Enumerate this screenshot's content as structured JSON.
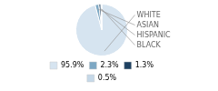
{
  "chart_data": {
    "type": "pie",
    "categories": [
      "WHITE",
      "ASIAN",
      "HISPANIC",
      "BLACK"
    ],
    "values": [
      95.9,
      2.3,
      1.3,
      0.5
    ],
    "value_labels": [
      "95.9%",
      "2.3%",
      "1.3%",
      "0.5%"
    ],
    "colors": [
      "#d6e4f0",
      "#7da8c4",
      "#1e4060",
      "#c5d8e8"
    ],
    "legend": "bottom"
  }
}
